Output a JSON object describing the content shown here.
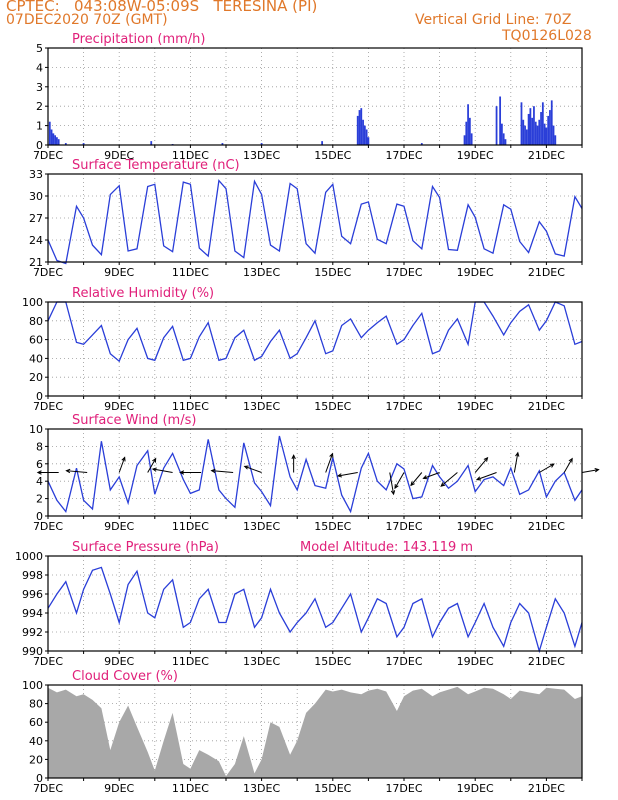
{
  "header": {
    "line1": "CPTEC:   043:08W-05:09S   TERESINA (PI)",
    "line2": "07DEC2020 70Z (GMT)",
    "right1": "Vertical Grid Line: 70Z",
    "right2": "TQ0126L028"
  },
  "colors": {
    "header": "#e0782a",
    "title": "#e0207a",
    "line": "#2a3ed8",
    "bar": "#2a3ed8",
    "cloud": "#a8a8a8",
    "axis": "#000000"
  },
  "x_tick_labels": [
    "7DEC",
    "9DEC",
    "11DEC",
    "13DEC",
    "15DEC",
    "17DEC",
    "19DEC",
    "21DEC"
  ],
  "chart_data": [
    {
      "type": "bar",
      "title": "Precipitation (mm/h)",
      "ylim": [
        0,
        5
      ],
      "yticks": [
        0,
        1,
        2,
        3,
        4,
        5
      ],
      "x_day_range": [
        7,
        22
      ],
      "x_days": [
        7.05,
        7.1,
        7.15,
        7.2,
        7.25,
        7.3,
        7.5,
        8.0,
        9.9,
        10.5,
        11.9,
        13.0,
        14.7,
        15.7,
        15.75,
        15.8,
        15.85,
        15.9,
        15.95,
        16.0,
        17.5,
        18.7,
        18.75,
        18.8,
        18.85,
        18.9,
        19.6,
        19.7,
        19.75,
        19.8,
        19.85,
        20.3,
        20.35,
        20.4,
        20.45,
        20.5,
        20.55,
        20.6,
        20.65,
        20.7,
        20.75,
        20.8,
        20.85,
        20.9,
        20.95,
        21.0,
        21.05,
        21.1,
        21.15,
        21.2,
        21.25
      ],
      "values": [
        1.2,
        0.8,
        0.6,
        0.5,
        0.4,
        0.3,
        0.1,
        0.1,
        0.2,
        0.05,
        0.1,
        0.1,
        0.2,
        1.5,
        1.8,
        1.9,
        1.3,
        1.0,
        0.8,
        0.4,
        0.1,
        0.5,
        1.2,
        2.1,
        1.4,
        0.6,
        2.0,
        2.5,
        1.1,
        0.6,
        0.3,
        2.2,
        1.3,
        1.0,
        0.8,
        1.6,
        1.9,
        1.4,
        2.0,
        1.2,
        1.0,
        1.3,
        1.7,
        2.2,
        1.1,
        0.9,
        1.5,
        1.8,
        2.3,
        1.0,
        0.5
      ]
    },
    {
      "type": "line",
      "title": "Surface Temperature (nC)",
      "ylim": [
        21,
        33
      ],
      "yticks": [
        21,
        24,
        27,
        30,
        33
      ],
      "x_day_range": [
        7,
        22
      ],
      "x_days": [
        7.0,
        7.25,
        7.5,
        7.8,
        8.0,
        8.25,
        8.5,
        8.75,
        9.0,
        9.25,
        9.5,
        9.8,
        10.0,
        10.25,
        10.5,
        10.8,
        11.0,
        11.25,
        11.5,
        11.8,
        12.0,
        12.25,
        12.5,
        12.8,
        13.0,
        13.25,
        13.5,
        13.8,
        14.0,
        14.25,
        14.5,
        14.8,
        15.0,
        15.25,
        15.5,
        15.8,
        16.0,
        16.25,
        16.5,
        16.8,
        17.0,
        17.25,
        17.5,
        17.8,
        18.0,
        18.25,
        18.5,
        18.8,
        19.0,
        19.25,
        19.5,
        19.8,
        20.0,
        20.25,
        20.5,
        20.8,
        21.0,
        21.25,
        21.5,
        21.8,
        22.0
      ],
      "series": [
        {
          "values": [
            24.0,
            21.2,
            20.8,
            28.6,
            27.0,
            23.3,
            22.0,
            30.2,
            31.4,
            22.5,
            22.8,
            31.3,
            31.6,
            23.2,
            22.4,
            31.9,
            31.6,
            22.9,
            21.8,
            32.1,
            31.0,
            22.5,
            21.6,
            32.0,
            30.2,
            23.3,
            22.5,
            31.7,
            31.0,
            23.5,
            22.2,
            30.5,
            31.6,
            24.5,
            23.5,
            28.9,
            29.2,
            24.1,
            23.5,
            28.9,
            28.6,
            23.9,
            22.8,
            31.3,
            29.8,
            22.7,
            22.6,
            28.8,
            27.1,
            22.8,
            22.2,
            28.8,
            28.2,
            23.8,
            22.3,
            26.5,
            25.2,
            22.1,
            21.8,
            29.9,
            28.3
          ]
        }
      ]
    },
    {
      "type": "line",
      "title": "Relative Humidity (%)",
      "ylim": [
        0,
        100
      ],
      "yticks": [
        0,
        20,
        40,
        60,
        80,
        100
      ],
      "x_day_range": [
        7,
        22
      ],
      "x_days": [
        7.0,
        7.25,
        7.5,
        7.8,
        8.0,
        8.25,
        8.5,
        8.75,
        9.0,
        9.25,
        9.5,
        9.8,
        10.0,
        10.25,
        10.5,
        10.8,
        11.0,
        11.25,
        11.5,
        11.8,
        12.0,
        12.25,
        12.5,
        12.8,
        13.0,
        13.25,
        13.5,
        13.8,
        14.0,
        14.25,
        14.5,
        14.8,
        15.0,
        15.25,
        15.5,
        15.8,
        16.0,
        16.25,
        16.5,
        16.8,
        17.0,
        17.25,
        17.5,
        17.8,
        18.0,
        18.25,
        18.5,
        18.8,
        19.0,
        19.25,
        19.5,
        19.8,
        20.0,
        20.25,
        20.5,
        20.8,
        21.0,
        21.25,
        21.5,
        21.8,
        22.0
      ],
      "series": [
        {
          "values": [
            80.0,
            100.0,
            100.0,
            57.0,
            55.0,
            65.0,
            75.0,
            45.0,
            37.0,
            60.0,
            72.0,
            40.0,
            38.0,
            62.0,
            74.0,
            38.0,
            40.0,
            63.0,
            78.0,
            38.0,
            40.0,
            62.0,
            70.0,
            38.0,
            42.0,
            58.0,
            70.0,
            40.0,
            45.0,
            62.0,
            80.0,
            45.0,
            48.0,
            75.0,
            82.0,
            62.0,
            70.0,
            78.0,
            85.0,
            55.0,
            60.0,
            75.0,
            88.0,
            45.0,
            48.0,
            70.0,
            82.0,
            55.0,
            100.0,
            100.0,
            85.0,
            65.0,
            78.0,
            90.0,
            97.0,
            70.0,
            80.0,
            100.0,
            96.0,
            55.0,
            58.0
          ]
        }
      ]
    },
    {
      "type": "line",
      "title": "Surface Wind (m/s)",
      "ylim": [
        0,
        10
      ],
      "yticks": [
        0,
        2,
        4,
        6,
        8,
        10
      ],
      "x_day_range": [
        7,
        22
      ],
      "x_days": [
        7.0,
        7.25,
        7.5,
        7.8,
        8.0,
        8.25,
        8.5,
        8.75,
        9.0,
        9.25,
        9.5,
        9.8,
        10.0,
        10.25,
        10.5,
        10.8,
        11.0,
        11.25,
        11.5,
        11.8,
        12.0,
        12.25,
        12.5,
        12.8,
        13.0,
        13.25,
        13.5,
        13.8,
        14.0,
        14.25,
        14.5,
        14.8,
        15.0,
        15.25,
        15.5,
        15.8,
        16.0,
        16.25,
        16.5,
        16.8,
        17.0,
        17.25,
        17.5,
        17.8,
        18.0,
        18.25,
        18.5,
        18.8,
        19.0,
        19.25,
        19.5,
        19.8,
        20.0,
        20.25,
        20.5,
        20.8,
        21.0,
        21.25,
        21.5,
        21.8,
        22.0
      ],
      "series": [
        {
          "values": [
            4.0,
            1.8,
            0.5,
            5.5,
            1.8,
            0.8,
            8.6,
            3.0,
            4.5,
            1.5,
            5.8,
            7.5,
            2.5,
            5.5,
            7.2,
            4.2,
            2.6,
            3.0,
            8.8,
            3.0,
            2.0,
            1.0,
            8.4,
            3.8,
            2.8,
            1.2,
            9.2,
            4.5,
            3.0,
            6.5,
            3.5,
            3.2,
            6.7,
            2.4,
            0.5,
            5.5,
            7.2,
            4.0,
            3.0,
            6.0,
            5.4,
            2.0,
            2.2,
            5.8,
            4.5,
            3.2,
            4.0,
            5.8,
            2.8,
            4.2,
            4.5,
            3.5,
            5.5,
            2.5,
            3.0,
            5.2,
            2.2,
            4.0,
            5.0,
            1.8,
            3.0
          ]
        }
      ],
      "wind_vectors": {
        "x_days": [
          7.3,
          8.1,
          9.0,
          9.8,
          10.5,
          11.3,
          12.2,
          13.0,
          13.9,
          14.8,
          15.7,
          16.6,
          17.0,
          17.5,
          18.0,
          18.5,
          19.0,
          19.6,
          20.1,
          20.8,
          21.5,
          22.0
        ],
        "speed": [
          5.2,
          5.2,
          4.0,
          4.0,
          5.0,
          5.2,
          5.4,
          4.5,
          4.3,
          5.0,
          5.0,
          5.5,
          4.5,
          4.2,
          4.3,
          5.3,
          4.8,
          5.2,
          5.0,
          4.2,
          4.0,
          4.2
        ],
        "direction_deg": [
          90,
          95,
          200,
          210,
          100,
          90,
          95,
          110,
          180,
          200,
          80,
          350,
          30,
          40,
          70,
          50,
          220,
          70,
          190,
          240,
          210,
          260
        ]
      }
    },
    {
      "type": "line",
      "title": "Surface Pressure (hPa)",
      "annotation": "Model Altitude: 143.119 m",
      "ylim": [
        990,
        1000
      ],
      "yticks": [
        990,
        992,
        994,
        996,
        998,
        1000
      ],
      "x_day_range": [
        7,
        22
      ],
      "x_days": [
        7.0,
        7.25,
        7.5,
        7.8,
        8.0,
        8.25,
        8.5,
        8.75,
        9.0,
        9.25,
        9.5,
        9.8,
        10.0,
        10.25,
        10.5,
        10.8,
        11.0,
        11.25,
        11.5,
        11.8,
        12.0,
        12.25,
        12.5,
        12.8,
        13.0,
        13.25,
        13.5,
        13.8,
        14.0,
        14.25,
        14.5,
        14.8,
        15.0,
        15.25,
        15.5,
        15.8,
        16.0,
        16.25,
        16.5,
        16.8,
        17.0,
        17.25,
        17.5,
        17.8,
        18.0,
        18.25,
        18.5,
        18.8,
        19.0,
        19.25,
        19.5,
        19.8,
        20.0,
        20.25,
        20.5,
        20.8,
        21.0,
        21.25,
        21.5,
        21.8,
        22.0
      ],
      "series": [
        {
          "values": [
            994.5,
            996.0,
            997.3,
            994.0,
            996.5,
            998.5,
            998.8,
            996.0,
            993.0,
            997.0,
            998.4,
            994.0,
            993.5,
            996.5,
            997.5,
            992.5,
            993.0,
            995.5,
            996.5,
            993.0,
            993.0,
            996.0,
            996.5,
            992.5,
            993.5,
            996.5,
            994.0,
            992.0,
            993.0,
            994.0,
            995.5,
            992.5,
            993.0,
            994.5,
            996.0,
            992.0,
            993.5,
            995.5,
            995.0,
            991.5,
            992.5,
            995.0,
            995.5,
            991.5,
            993.0,
            994.5,
            995.0,
            991.5,
            993.0,
            995.0,
            992.5,
            990.5,
            993.0,
            995.0,
            994.0,
            990.0,
            992.5,
            995.5,
            994.0,
            990.5,
            993.0
          ]
        }
      ]
    },
    {
      "type": "area",
      "title": "Cloud Cover (%)",
      "ylim": [
        0,
        100
      ],
      "yticks": [
        0,
        20,
        40,
        60,
        80,
        100
      ],
      "x_day_range": [
        7,
        22
      ],
      "x_days": [
        7.0,
        7.25,
        7.5,
        7.8,
        8.0,
        8.25,
        8.5,
        8.75,
        9.0,
        9.25,
        9.5,
        9.8,
        10.0,
        10.25,
        10.5,
        10.8,
        11.0,
        11.25,
        11.5,
        11.8,
        12.0,
        12.25,
        12.5,
        12.8,
        13.0,
        13.25,
        13.5,
        13.8,
        14.0,
        14.25,
        14.5,
        14.8,
        15.0,
        15.25,
        15.5,
        15.8,
        16.0,
        16.25,
        16.5,
        16.8,
        17.0,
        17.25,
        17.5,
        17.8,
        18.0,
        18.25,
        18.5,
        18.8,
        19.0,
        19.25,
        19.5,
        19.8,
        20.0,
        20.25,
        20.5,
        20.8,
        21.0,
        21.25,
        21.5,
        21.8,
        22.0
      ],
      "series": [
        {
          "values": [
            97.0,
            92.0,
            95.0,
            88.0,
            90.0,
            84.0,
            75.0,
            30.0,
            60.0,
            78.0,
            55.0,
            28.0,
            8.0,
            40.0,
            70.0,
            15.0,
            10.0,
            30.0,
            25.0,
            18.0,
            2.0,
            15.0,
            45.0,
            5.0,
            20.0,
            60.0,
            55.0,
            25.0,
            40.0,
            70.0,
            80.0,
            95.0,
            93.0,
            95.0,
            92.0,
            90.0,
            94.0,
            96.0,
            93.0,
            72.0,
            88.0,
            94.0,
            96.0,
            88.0,
            92.0,
            95.0,
            98.0,
            90.0,
            93.0,
            97.0,
            96.0,
            90.0,
            85.0,
            94.0,
            92.0,
            90.0,
            97.0,
            96.0,
            95.0,
            85.0,
            88.0
          ]
        }
      ]
    }
  ]
}
